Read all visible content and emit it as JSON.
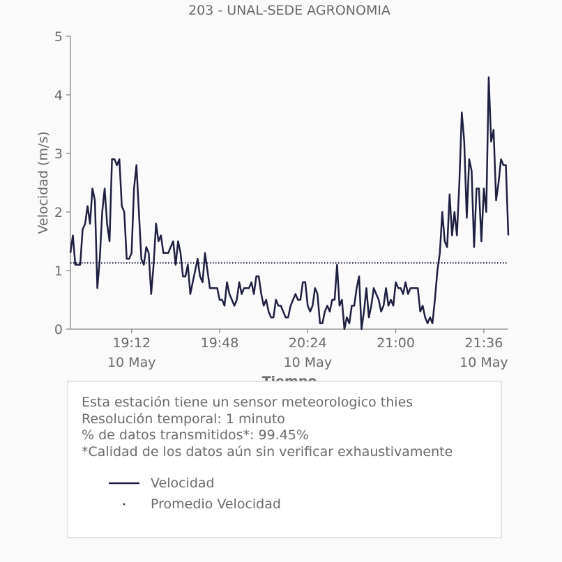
{
  "chart_data": {
    "type": "line",
    "title": "203 - UNAL-SEDE AGRONOMIA",
    "xlabel": "Tiempo",
    "ylabel": "Velocidad (m/s)",
    "ylim": [
      0,
      5
    ],
    "xlim": [
      "18:47",
      "21:46"
    ],
    "yticks": [
      "0",
      "1",
      "2",
      "3",
      "4",
      "5"
    ],
    "xticks": [
      {
        "time": "19:12",
        "label": "19:12",
        "date": "10 May"
      },
      {
        "time": "19:48",
        "label": "19:48",
        "date": ""
      },
      {
        "time": "20:24",
        "label": "20:24",
        "date": "10 May"
      },
      {
        "time": "21:00",
        "label": "21:00",
        "date": ""
      },
      {
        "time": "21:36",
        "label": "21:36",
        "date": "10 May"
      }
    ],
    "series": [
      {
        "name": "Velocidad",
        "color": "#1f2041",
        "style": "solid",
        "x": [
          "18:47",
          "18:48",
          "18:49",
          "18:50",
          "18:51",
          "18:52",
          "18:53",
          "18:54",
          "18:55",
          "18:56",
          "18:57",
          "18:58",
          "18:59",
          "19:00",
          "19:01",
          "19:02",
          "19:03",
          "19:04",
          "19:05",
          "19:06",
          "19:07",
          "19:08",
          "19:09",
          "19:10",
          "19:11",
          "19:12",
          "19:13",
          "19:14",
          "19:15",
          "19:16",
          "19:17",
          "19:18",
          "19:19",
          "19:20",
          "19:21",
          "19:22",
          "19:23",
          "19:24",
          "19:25",
          "19:26",
          "19:27",
          "19:28",
          "19:29",
          "19:30",
          "19:31",
          "19:32",
          "19:33",
          "19:34",
          "19:35",
          "19:36",
          "19:37",
          "19:38",
          "19:39",
          "19:40",
          "19:41",
          "19:42",
          "19:43",
          "19:44",
          "19:45",
          "19:46",
          "19:47",
          "19:48",
          "19:49",
          "19:50",
          "19:51",
          "19:52",
          "19:53",
          "19:54",
          "19:55",
          "19:56",
          "19:57",
          "19:58",
          "19:59",
          "20:00",
          "20:01",
          "20:02",
          "20:03",
          "20:04",
          "20:05",
          "20:06",
          "20:07",
          "20:08",
          "20:09",
          "20:10",
          "20:11",
          "20:12",
          "20:13",
          "20:14",
          "20:15",
          "20:16",
          "20:17",
          "20:18",
          "20:19",
          "20:20",
          "20:21",
          "20:22",
          "20:23",
          "20:24",
          "20:25",
          "20:26",
          "20:27",
          "20:28",
          "20:29",
          "20:30",
          "20:31",
          "20:32",
          "20:33",
          "20:34",
          "20:35",
          "20:36",
          "20:37",
          "20:38",
          "20:39",
          "20:40",
          "20:41",
          "20:42",
          "20:43",
          "20:44",
          "20:45",
          "20:46",
          "20:47",
          "20:48",
          "20:49",
          "20:50",
          "20:51",
          "20:52",
          "20:53",
          "20:54",
          "20:55",
          "20:56",
          "20:57",
          "20:58",
          "20:59",
          "21:00",
          "21:01",
          "21:02",
          "21:03",
          "21:04",
          "21:05",
          "21:06",
          "21:07",
          "21:08",
          "21:09",
          "21:10",
          "21:11",
          "21:12",
          "21:13",
          "21:14",
          "21:15",
          "21:16",
          "21:17",
          "21:18",
          "21:19",
          "21:20",
          "21:21",
          "21:22",
          "21:23",
          "21:24",
          "21:25",
          "21:26",
          "21:27",
          "21:28",
          "21:29",
          "21:30",
          "21:31",
          "21:32",
          "21:33",
          "21:34",
          "21:35",
          "21:36",
          "21:37",
          "21:38",
          "21:39",
          "21:40",
          "21:41",
          "21:42",
          "21:43",
          "21:44",
          "21:45",
          "21:46"
        ],
        "values": [
          1.3,
          1.6,
          1.1,
          1.1,
          1.1,
          1.7,
          1.8,
          2.1,
          1.8,
          2.4,
          2.2,
          0.7,
          1.2,
          2.0,
          2.4,
          1.8,
          1.5,
          2.9,
          2.9,
          2.8,
          2.9,
          2.1,
          2.0,
          1.2,
          1.2,
          1.3,
          2.4,
          2.8,
          2.0,
          1.2,
          1.1,
          1.4,
          1.3,
          0.6,
          1.1,
          1.8,
          1.5,
          1.6,
          1.3,
          1.3,
          1.3,
          1.4,
          1.5,
          1.1,
          1.5,
          1.3,
          0.9,
          0.9,
          1.1,
          0.6,
          0.8,
          1.0,
          1.2,
          0.9,
          0.8,
          1.3,
          1.0,
          0.7,
          0.7,
          0.7,
          0.7,
          0.5,
          0.5,
          0.4,
          0.8,
          0.6,
          0.5,
          0.4,
          0.5,
          0.8,
          0.6,
          0.7,
          0.7,
          0.7,
          0.8,
          0.6,
          0.9,
          0.9,
          0.6,
          0.4,
          0.5,
          0.3,
          0.2,
          0.2,
          0.5,
          0.4,
          0.4,
          0.3,
          0.2,
          0.2,
          0.4,
          0.5,
          0.6,
          0.5,
          0.5,
          0.8,
          0.8,
          0.4,
          0.3,
          0.4,
          0.7,
          0.6,
          0.1,
          0.1,
          0.3,
          0.4,
          0.3,
          0.5,
          0.5,
          1.1,
          0.4,
          0.5,
          0.0,
          0.2,
          0.1,
          0.4,
          0.4,
          0.7,
          0.9,
          0.0,
          0.3,
          0.7,
          0.2,
          0.4,
          0.7,
          0.6,
          0.5,
          0.3,
          0.4,
          0.7,
          0.4,
          0.5,
          0.4,
          0.8,
          0.7,
          0.7,
          0.6,
          0.8,
          0.6,
          0.7,
          0.7,
          0.7,
          0.7,
          0.3,
          0.4,
          0.2,
          0.1,
          0.2,
          0.1,
          0.5,
          1.0,
          1.3,
          2.0,
          1.5,
          1.4,
          2.3,
          1.6,
          2.0,
          1.6,
          2.5,
          3.7,
          3.2,
          1.9,
          2.9,
          2.7,
          1.4,
          2.4,
          2.4,
          1.5,
          2.4,
          2.0,
          4.3,
          3.2,
          3.4,
          2.2,
          2.5,
          2.9,
          2.8,
          2.8,
          1.6
        ]
      },
      {
        "name": "Promedio Velocidad",
        "color": "#1f2041",
        "style": "dotted",
        "constant": 1.13
      }
    ],
    "grid": false,
    "legend_placement": "below"
  },
  "info": {
    "lines": [
      "Esta estación tiene un sensor meteorologico thies",
      "Resolución temporal: 1 minuto",
      "% de datos transmitidos*: 99.45%",
      "*Calidad de los datos aún sin verificar exhaustivamente"
    ]
  },
  "legend": [
    {
      "label": "Velocidad",
      "style": "solid"
    },
    {
      "label": "Promedio Velocidad",
      "style": "dot"
    }
  ],
  "colors": {
    "line": "#1f2041",
    "text": "#6b6b6b",
    "axis": "#6b6b6b",
    "background": "#fafafa"
  }
}
